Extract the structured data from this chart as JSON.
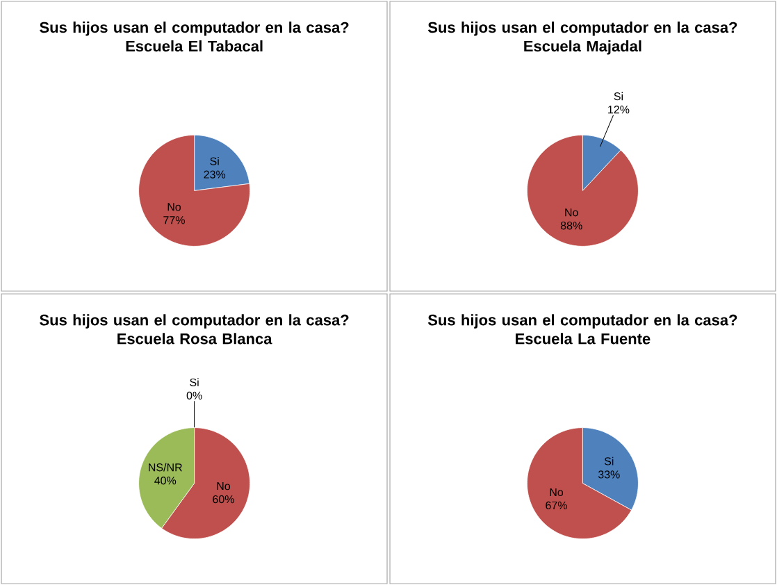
{
  "chart_data": [
    {
      "type": "pie",
      "title": "Sus hijos usan el computador en la casa?",
      "subtitle": "Escuela El Tabacal",
      "categories": [
        "Si",
        "No"
      ],
      "values": [
        23,
        77
      ],
      "colors": [
        "#4f81bd",
        "#c0504d"
      ],
      "value_labels": [
        "23%",
        "77%"
      ]
    },
    {
      "type": "pie",
      "title": "Sus hijos usan el computador en la casa?",
      "subtitle": "Escuela Majadal",
      "categories": [
        "Si",
        "No"
      ],
      "values": [
        12,
        88
      ],
      "colors": [
        "#4f81bd",
        "#c0504d"
      ],
      "value_labels": [
        "12%",
        "88%"
      ]
    },
    {
      "type": "pie",
      "title": "Sus hijos usan el computador en la casa?",
      "subtitle": "Escuela Rosa Blanca",
      "categories": [
        "Si",
        "No",
        "NS/NR"
      ],
      "values": [
        0,
        60,
        40
      ],
      "colors": [
        "#4f81bd",
        "#c0504d",
        "#9bbb59"
      ],
      "value_labels": [
        "0%",
        "60%",
        "40%"
      ]
    },
    {
      "type": "pie",
      "title": "Sus hijos usan el computador en la casa?",
      "subtitle": "Escuela La Fuente",
      "categories": [
        "Si",
        "No"
      ],
      "values": [
        33,
        67
      ],
      "colors": [
        "#4f81bd",
        "#c0504d"
      ],
      "value_labels": [
        "33%",
        "67%"
      ]
    }
  ]
}
